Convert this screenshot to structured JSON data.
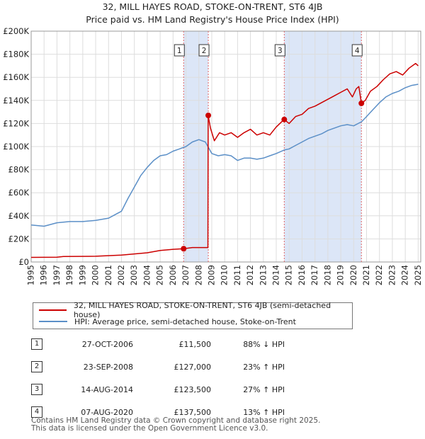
{
  "title_line1": "32, MILL HAYES ROAD, STOKE-ON-TRENT, ST6 4JB",
  "title_line2": "Price paid vs. HM Land Registry's House Price Index (HPI)",
  "chart_data": {
    "type": "line",
    "title": "32, MILL HAYES ROAD, STOKE-ON-TRENT, ST6 4JB — Price paid vs. HM Land Registry's House Price Index (HPI)",
    "xlabel": "",
    "ylabel": "",
    "xlim": [
      1995.0,
      2025.2
    ],
    "ylim": [
      0,
      200000
    ],
    "grid": true,
    "x_ticks": [
      1995,
      1996,
      1997,
      1998,
      1999,
      2000,
      2001,
      2002,
      2003,
      2004,
      2005,
      2006,
      2007,
      2008,
      2009,
      2010,
      2011,
      2012,
      2013,
      2014,
      2015,
      2016,
      2017,
      2018,
      2019,
      2020,
      2021,
      2022,
      2023,
      2024,
      2025
    ],
    "y_ticks": [
      0,
      20000,
      40000,
      60000,
      80000,
      100000,
      120000,
      140000,
      160000,
      180000,
      200000
    ],
    "y_tick_labels": [
      "£0",
      "£20K",
      "£40K",
      "£60K",
      "£80K",
      "£100K",
      "£120K",
      "£140K",
      "£160K",
      "£180K",
      "£200K"
    ],
    "series": [
      {
        "name": "32, MILL HAYES ROAD, STOKE-ON-TRENT, ST6 4JB (semi-detached house)",
        "color": "#cc0000",
        "points": [
          [
            1995.0,
            4000
          ],
          [
            1997.0,
            4200
          ],
          [
            1997.5,
            4800
          ],
          [
            2000.0,
            5000
          ],
          [
            2002.0,
            6000
          ],
          [
            2004.0,
            8000
          ],
          [
            2005.0,
            10000
          ],
          [
            2006.0,
            11000
          ],
          [
            2006.82,
            11500
          ],
          [
            2007.5,
            12500
          ],
          [
            2008.7,
            12500
          ],
          [
            2008.72,
            127000
          ],
          [
            2008.9,
            116000
          ],
          [
            2009.2,
            105000
          ],
          [
            2009.6,
            112000
          ],
          [
            2010.0,
            110000
          ],
          [
            2010.5,
            112000
          ],
          [
            2011.0,
            108000
          ],
          [
            2011.5,
            112000
          ],
          [
            2012.0,
            115000
          ],
          [
            2012.5,
            110000
          ],
          [
            2013.0,
            112000
          ],
          [
            2013.5,
            110000
          ],
          [
            2014.0,
            117000
          ],
          [
            2014.61,
            123500
          ],
          [
            2015.0,
            120000
          ],
          [
            2015.5,
            126000
          ],
          [
            2016.0,
            128000
          ],
          [
            2016.5,
            133000
          ],
          [
            2017.0,
            135000
          ],
          [
            2017.5,
            138000
          ],
          [
            2018.0,
            141000
          ],
          [
            2018.5,
            144000
          ],
          [
            2019.0,
            147000
          ],
          [
            2019.5,
            150000
          ],
          [
            2019.9,
            143000
          ],
          [
            2020.2,
            150000
          ],
          [
            2020.4,
            152000
          ],
          [
            2020.6,
            137500
          ],
          [
            2020.9,
            140000
          ],
          [
            2021.3,
            148000
          ],
          [
            2021.8,
            152000
          ],
          [
            2022.3,
            158000
          ],
          [
            2022.8,
            163000
          ],
          [
            2023.3,
            165000
          ],
          [
            2023.8,
            162000
          ],
          [
            2024.3,
            168000
          ],
          [
            2024.8,
            172000
          ],
          [
            2025.0,
            170000
          ]
        ]
      },
      {
        "name": "HPI: Average price, semi-detached house, Stoke-on-Trent",
        "color": "#5b8fc7",
        "points": [
          [
            1995.0,
            32000
          ],
          [
            1996.0,
            31000
          ],
          [
            1997.0,
            34000
          ],
          [
            1998.0,
            35000
          ],
          [
            1999.0,
            35000
          ],
          [
            2000.0,
            36000
          ],
          [
            2001.0,
            38000
          ],
          [
            2001.5,
            41000
          ],
          [
            2002.0,
            44000
          ],
          [
            2002.5,
            55000
          ],
          [
            2003.0,
            65000
          ],
          [
            2003.5,
            75000
          ],
          [
            2004.0,
            82000
          ],
          [
            2004.5,
            88000
          ],
          [
            2005.0,
            92000
          ],
          [
            2005.5,
            93000
          ],
          [
            2006.0,
            96000
          ],
          [
            2006.5,
            98000
          ],
          [
            2007.0,
            100000
          ],
          [
            2007.5,
            104000
          ],
          [
            2008.0,
            106000
          ],
          [
            2008.5,
            104000
          ],
          [
            2009.0,
            94000
          ],
          [
            2009.5,
            92000
          ],
          [
            2010.0,
            93000
          ],
          [
            2010.5,
            92000
          ],
          [
            2011.0,
            88000
          ],
          [
            2011.5,
            90000
          ],
          [
            2012.0,
            90000
          ],
          [
            2012.5,
            89000
          ],
          [
            2013.0,
            90000
          ],
          [
            2013.5,
            92000
          ],
          [
            2014.0,
            94000
          ],
          [
            2014.61,
            97000
          ],
          [
            2015.0,
            98000
          ],
          [
            2015.5,
            101000
          ],
          [
            2016.0,
            104000
          ],
          [
            2016.5,
            107000
          ],
          [
            2017.0,
            109000
          ],
          [
            2017.5,
            111000
          ],
          [
            2018.0,
            114000
          ],
          [
            2018.5,
            116000
          ],
          [
            2019.0,
            118000
          ],
          [
            2019.5,
            119000
          ],
          [
            2020.0,
            118000
          ],
          [
            2020.61,
            121500
          ],
          [
            2021.0,
            126000
          ],
          [
            2021.5,
            132000
          ],
          [
            2022.0,
            138000
          ],
          [
            2022.5,
            143000
          ],
          [
            2023.0,
            146000
          ],
          [
            2023.5,
            148000
          ],
          [
            2024.0,
            151000
          ],
          [
            2024.5,
            153000
          ],
          [
            2025.0,
            154000
          ]
        ]
      }
    ],
    "sales": [
      {
        "label": "1",
        "x": 2006.82,
        "value": 11500
      },
      {
        "label": "2",
        "x": 2008.73,
        "value": 127000
      },
      {
        "label": "3",
        "x": 2014.62,
        "value": 123500
      },
      {
        "label": "4",
        "x": 2020.6,
        "value": 137500
      }
    ],
    "shaded_ranges": [
      [
        2006.82,
        2008.73
      ],
      [
        2014.62,
        2020.6
      ]
    ],
    "shade_color": "#dce6f7",
    "legend_position": "bottom"
  },
  "legend": {
    "property_label": "32, MILL HAYES ROAD, STOKE-ON-TRENT, ST6 4JB (semi-detached house)",
    "hpi_label": "HPI: Average price, semi-detached house, Stoke-on-Trent"
  },
  "transactions": [
    {
      "num": "1",
      "date": "27-OCT-2006",
      "price": "£11,500",
      "hpi": "88% ↓ HPI"
    },
    {
      "num": "2",
      "date": "23-SEP-2008",
      "price": "£127,000",
      "hpi": "23% ↑ HPI"
    },
    {
      "num": "3",
      "date": "14-AUG-2014",
      "price": "£123,500",
      "hpi": "27% ↑ HPI"
    },
    {
      "num": "4",
      "date": "07-AUG-2020",
      "price": "£137,500",
      "hpi": "13% ↑ HPI"
    }
  ],
  "footer": {
    "line1": "Contains HM Land Registry data © Crown copyright and database right 2025.",
    "line2": "This data is licensed under the Open Government Licence v3.0."
  }
}
